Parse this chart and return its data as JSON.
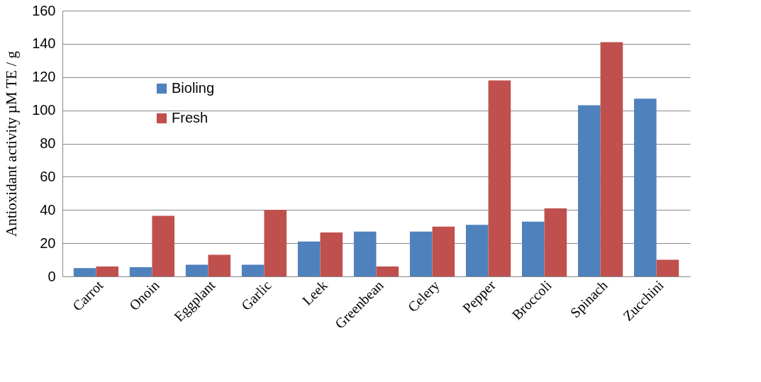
{
  "chart_data": {
    "type": "bar",
    "ylabel": "Antioxidant activity µM TE / g",
    "categories": [
      "Carrot",
      "Onoin",
      "Eggplant",
      "Garlic",
      "Leek",
      "Greenbean",
      "Celery",
      "Pepper",
      "Broccoli",
      "Spinach",
      "Zucchini"
    ],
    "series": [
      {
        "name": "Bioling",
        "color": "#4f81bd",
        "values": [
          5,
          5.5,
          7,
          7,
          21,
          27,
          27,
          31,
          33,
          103,
          107
        ]
      },
      {
        "name": "Fresh",
        "color": "#c0504d",
        "values": [
          6,
          36.5,
          13,
          40,
          26.5,
          6,
          30,
          118,
          41,
          141,
          10
        ]
      }
    ],
    "ylim": [
      0,
      160
    ],
    "yticks": [
      0,
      20,
      40,
      60,
      80,
      100,
      120,
      140,
      160
    ],
    "grid": "y",
    "legend": "top left"
  }
}
